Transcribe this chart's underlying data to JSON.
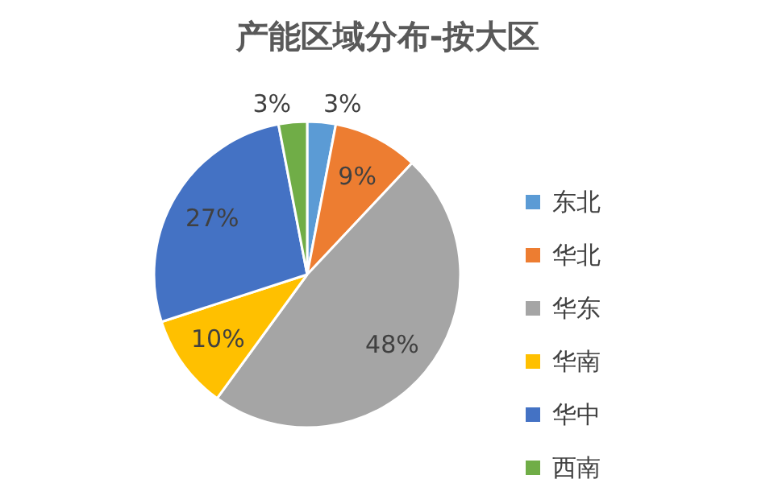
{
  "chart_data": {
    "type": "pie",
    "title": "产能区域分布-按大区",
    "categories": [
      "东北",
      "华北",
      "华东",
      "华南",
      "华中",
      "西南"
    ],
    "values": [
      3,
      9,
      48,
      10,
      27,
      3
    ],
    "value_labels": [
      "3%",
      "9%",
      "48%",
      "10%",
      "27%",
      "3%"
    ],
    "colors": [
      "#5b9bd5",
      "#ed7d31",
      "#a5a5a5",
      "#ffc000",
      "#4472c4",
      "#70ad47"
    ],
    "legend": "right"
  }
}
